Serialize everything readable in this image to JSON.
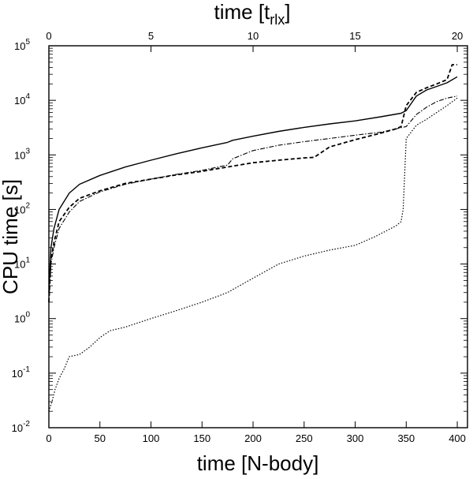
{
  "chart_data": {
    "type": "line",
    "title": "",
    "xlabel": "time [N-body]",
    "ylabel": "CPU time [s]",
    "x2label": "time [trlx]",
    "x2label_base": "time [t",
    "x2label_sub": "rlx",
    "x2label_end": "]",
    "xlim": [
      0,
      410
    ],
    "x2lim": [
      0,
      20.5
    ],
    "ylim": [
      0.01,
      100000
    ],
    "yscale": "log",
    "grid": false,
    "legend": "none",
    "xticks": [
      0,
      50,
      100,
      150,
      200,
      250,
      300,
      350,
      400
    ],
    "x2ticks": [
      0,
      5,
      10,
      15,
      20
    ],
    "yticks": [
      {
        "value": 0.01,
        "base": "10",
        "exp": "-2"
      },
      {
        "value": 0.1,
        "base": "10",
        "exp": "-1"
      },
      {
        "value": 1,
        "base": "10",
        "exp": "0"
      },
      {
        "value": 10,
        "base": "10",
        "exp": "1"
      },
      {
        "value": 100,
        "base": "10",
        "exp": "2"
      },
      {
        "value": 1000,
        "base": "10",
        "exp": "3"
      },
      {
        "value": 10000,
        "base": "10",
        "exp": "4"
      },
      {
        "value": 100000,
        "base": "10",
        "exp": "5"
      }
    ],
    "series": [
      {
        "style": "solid",
        "x": [
          0,
          2,
          5,
          10,
          20,
          30,
          50,
          75,
          100,
          125,
          150,
          175,
          180,
          200,
          225,
          250,
          275,
          300,
          325,
          345,
          350,
          360,
          370,
          380,
          390,
          400
        ],
        "y": [
          3,
          20,
          45,
          100,
          200,
          290,
          420,
          600,
          800,
          1050,
          1350,
          1700,
          1850,
          2200,
          2700,
          3200,
          3700,
          4200,
          5000,
          5800,
          6500,
          12000,
          15500,
          18000,
          21000,
          27000
        ]
      },
      {
        "style": "dashed",
        "x": [
          0,
          2,
          5,
          10,
          20,
          30,
          50,
          75,
          100,
          125,
          150,
          175,
          200,
          225,
          250,
          260,
          265,
          275,
          300,
          325,
          340,
          345,
          350,
          360,
          370,
          380,
          390,
          395,
          400
        ],
        "y": [
          2,
          12,
          25,
          60,
          110,
          160,
          220,
          300,
          360,
          430,
          500,
          600,
          720,
          800,
          880,
          900,
          1050,
          1400,
          1900,
          2500,
          3000,
          3300,
          8000,
          14000,
          17000,
          20000,
          24000,
          45000,
          45000
        ]
      },
      {
        "style": "dash-dot",
        "x": [
          0,
          2,
          5,
          10,
          20,
          30,
          50,
          75,
          100,
          125,
          150,
          175,
          180,
          200,
          225,
          250,
          275,
          300,
          325,
          340,
          350,
          360,
          370,
          380,
          390,
          400
        ],
        "y": [
          2,
          10,
          20,
          45,
          90,
          140,
          210,
          290,
          360,
          440,
          520,
          650,
          850,
          1200,
          1500,
          1750,
          2000,
          2300,
          2600,
          3000,
          3300,
          5500,
          7500,
          9500,
          11000,
          12000
        ]
      },
      {
        "style": "dotted",
        "x": [
          0,
          3,
          6,
          10,
          15,
          20,
          30,
          40,
          50,
          60,
          75,
          100,
          125,
          150,
          175,
          200,
          225,
          250,
          275,
          300,
          320,
          340,
          345,
          347,
          350,
          360,
          370,
          380,
          390,
          400
        ],
        "y": [
          0.02,
          0.03,
          0.05,
          0.08,
          0.12,
          0.2,
          0.22,
          0.3,
          0.45,
          0.6,
          0.7,
          1,
          1.4,
          2,
          3,
          5.5,
          10,
          14,
          18,
          22,
          32,
          50,
          60,
          100,
          2000,
          3500,
          4500,
          6000,
          8000,
          11000
        ]
      }
    ]
  }
}
